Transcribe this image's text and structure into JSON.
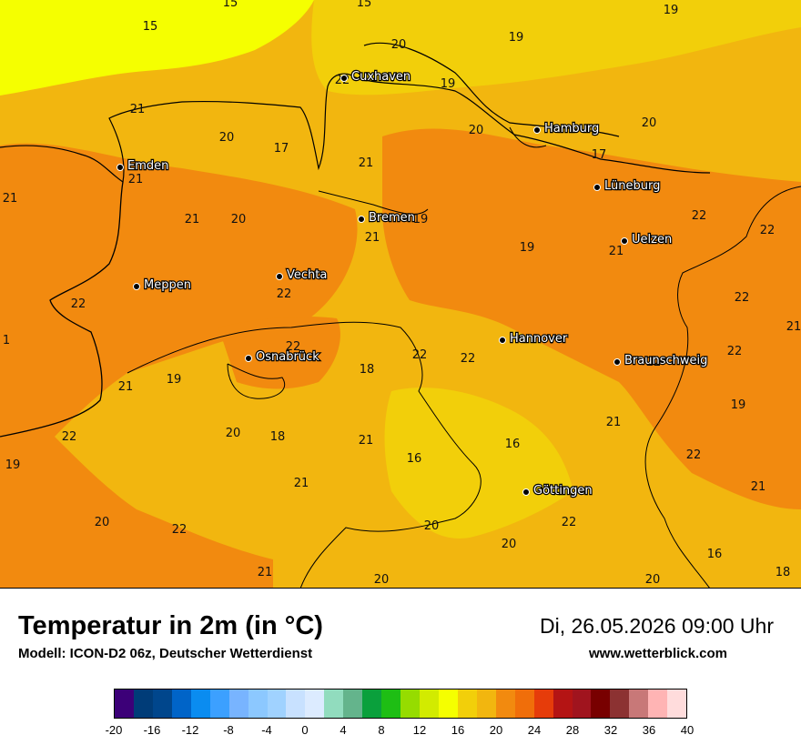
{
  "map": {
    "cities": [
      {
        "name": "Cuxhaven"
      },
      {
        "name": "Hamburg"
      },
      {
        "name": "Emden"
      },
      {
        "name": "Bremen"
      },
      {
        "name": "Lüneburg"
      },
      {
        "name": "Uelzen"
      },
      {
        "name": "Vechta"
      },
      {
        "name": "Meppen"
      },
      {
        "name": "Hannover"
      },
      {
        "name": "Osnabrück"
      },
      {
        "name": "Braunschweig"
      },
      {
        "name": "Göttingen"
      }
    ],
    "temperature_labels": [
      "15",
      "15",
      "15",
      "19",
      "19",
      "20",
      "19",
      "22",
      "17",
      "21",
      "20",
      "20",
      "20",
      "17",
      "21",
      "19",
      "21",
      "20",
      "21",
      "21",
      "21",
      "19",
      "21",
      "22",
      "22",
      "22",
      "22",
      "22",
      "21",
      "22",
      "22",
      "18",
      "22",
      "22",
      "1",
      "21",
      "19",
      "22",
      "19",
      "21",
      "20",
      "18",
      "21",
      "16",
      "16",
      "22",
      "19",
      "22",
      "21",
      "21",
      "22",
      "20",
      "20",
      "22",
      "20",
      "21",
      "20",
      "20",
      "16",
      "18"
    ],
    "colors": {
      "cool": "#f5ff00",
      "mid": "#f2cf0a",
      "warm": "#f2b60f",
      "hot": "#f28a0f",
      "border": "#000000"
    }
  },
  "header": {
    "title": "Temperatur in 2m (in °C)",
    "subtitle": "Modell: ICON-D2 06z, Deutscher Wetterdienst",
    "datetime": "Di, 26.05.2026 09:00 Uhr",
    "website": "www.wetterblick.com"
  },
  "colorbar": {
    "ticks": [
      "-20",
      "-16",
      "-12",
      "-8",
      "-4",
      "0",
      "4",
      "8",
      "12",
      "16",
      "20",
      "24",
      "28",
      "32",
      "36",
      "40"
    ],
    "colors": [
      "#3c0078",
      "#003c78",
      "#00468c",
      "#0064c8",
      "#0a8cf0",
      "#3ca0ff",
      "#78b4ff",
      "#8cc8ff",
      "#a0d2ff",
      "#c8e1ff",
      "#dcebff",
      "#91dcbe",
      "#64b48c",
      "#0aa03c",
      "#1ebe14",
      "#96dc00",
      "#d2eb00",
      "#f5ff00",
      "#f2cf0a",
      "#f2b60f",
      "#f28a0f",
      "#f06e0a",
      "#e63c0a",
      "#b41414",
      "#a0141e",
      "#780000",
      "#8c3232",
      "#c87878",
      "#ffb4b4",
      "#ffdcdc"
    ]
  }
}
